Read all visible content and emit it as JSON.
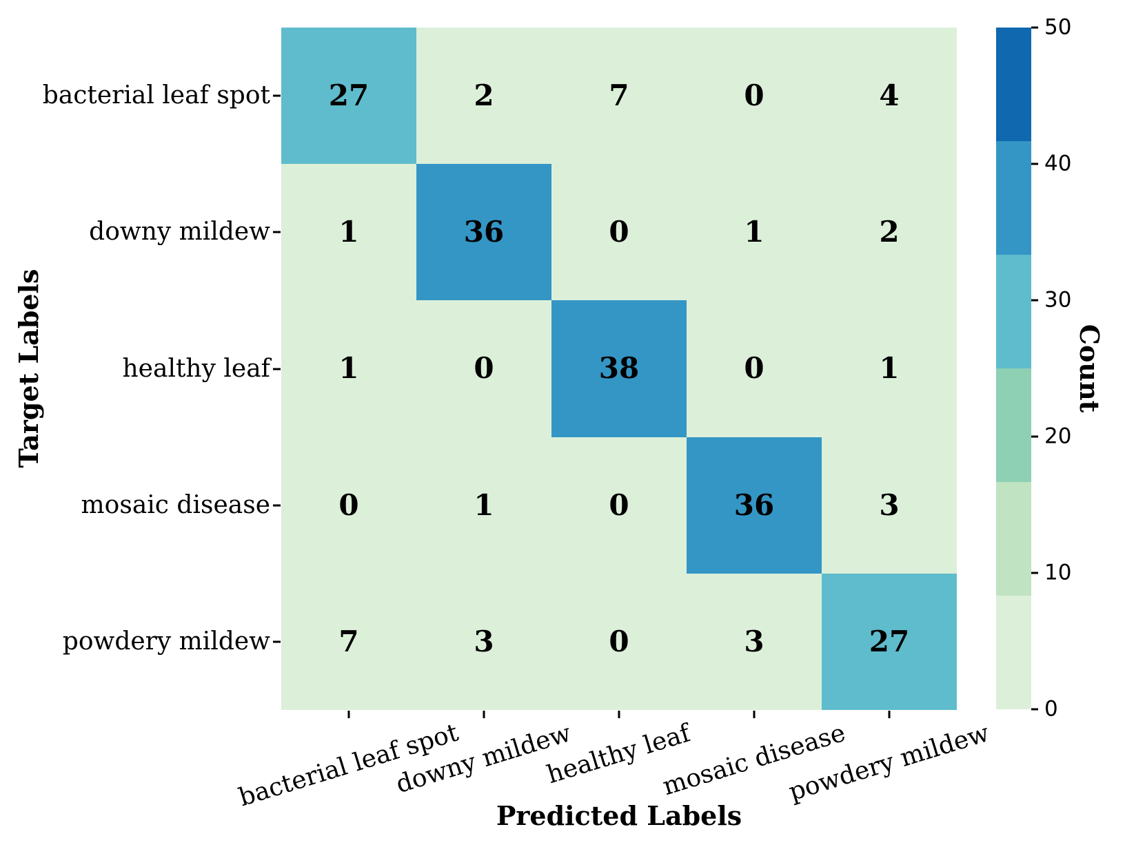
{
  "figure": {
    "xlabel": "Predicted Labels",
    "ylabel": "Target Labels",
    "colorbar_label": "Count"
  },
  "chart_data": {
    "type": "heatmap",
    "title": "",
    "xlabel": "Predicted Labels",
    "ylabel": "Target Labels",
    "categories": [
      "bacterial leaf spot",
      "downy mildew",
      "healthy leaf",
      "mosaic disease",
      "powdery mildew"
    ],
    "x_tick_labels": [
      "bacterial leaf spot",
      "downy mildew",
      "healthy leaf",
      "mosaic disease",
      "powdery mildew"
    ],
    "y_tick_labels": [
      "bacterial leaf spot",
      "downy mildew",
      "healthy leaf",
      "mosaic disease",
      "powdery mildew"
    ],
    "matrix": [
      [
        27,
        2,
        7,
        0,
        4
      ],
      [
        1,
        36,
        0,
        1,
        2
      ],
      [
        1,
        0,
        38,
        0,
        1
      ],
      [
        0,
        1,
        0,
        36,
        3
      ],
      [
        7,
        3,
        0,
        3,
        27
      ]
    ],
    "grid": false,
    "colorbar": {
      "label": "Count",
      "vmin": 0,
      "vmax": 50,
      "ticks": [
        0,
        10,
        20,
        30,
        40,
        50
      ],
      "n_bands": 6,
      "band_colors_low_to_high": [
        "#dcf0d9",
        "#c0e3c1",
        "#8ed0b4",
        "#5fbccc",
        "#3496c5",
        "#1068ae"
      ],
      "position": "right"
    },
    "text_color": "#000000"
  }
}
